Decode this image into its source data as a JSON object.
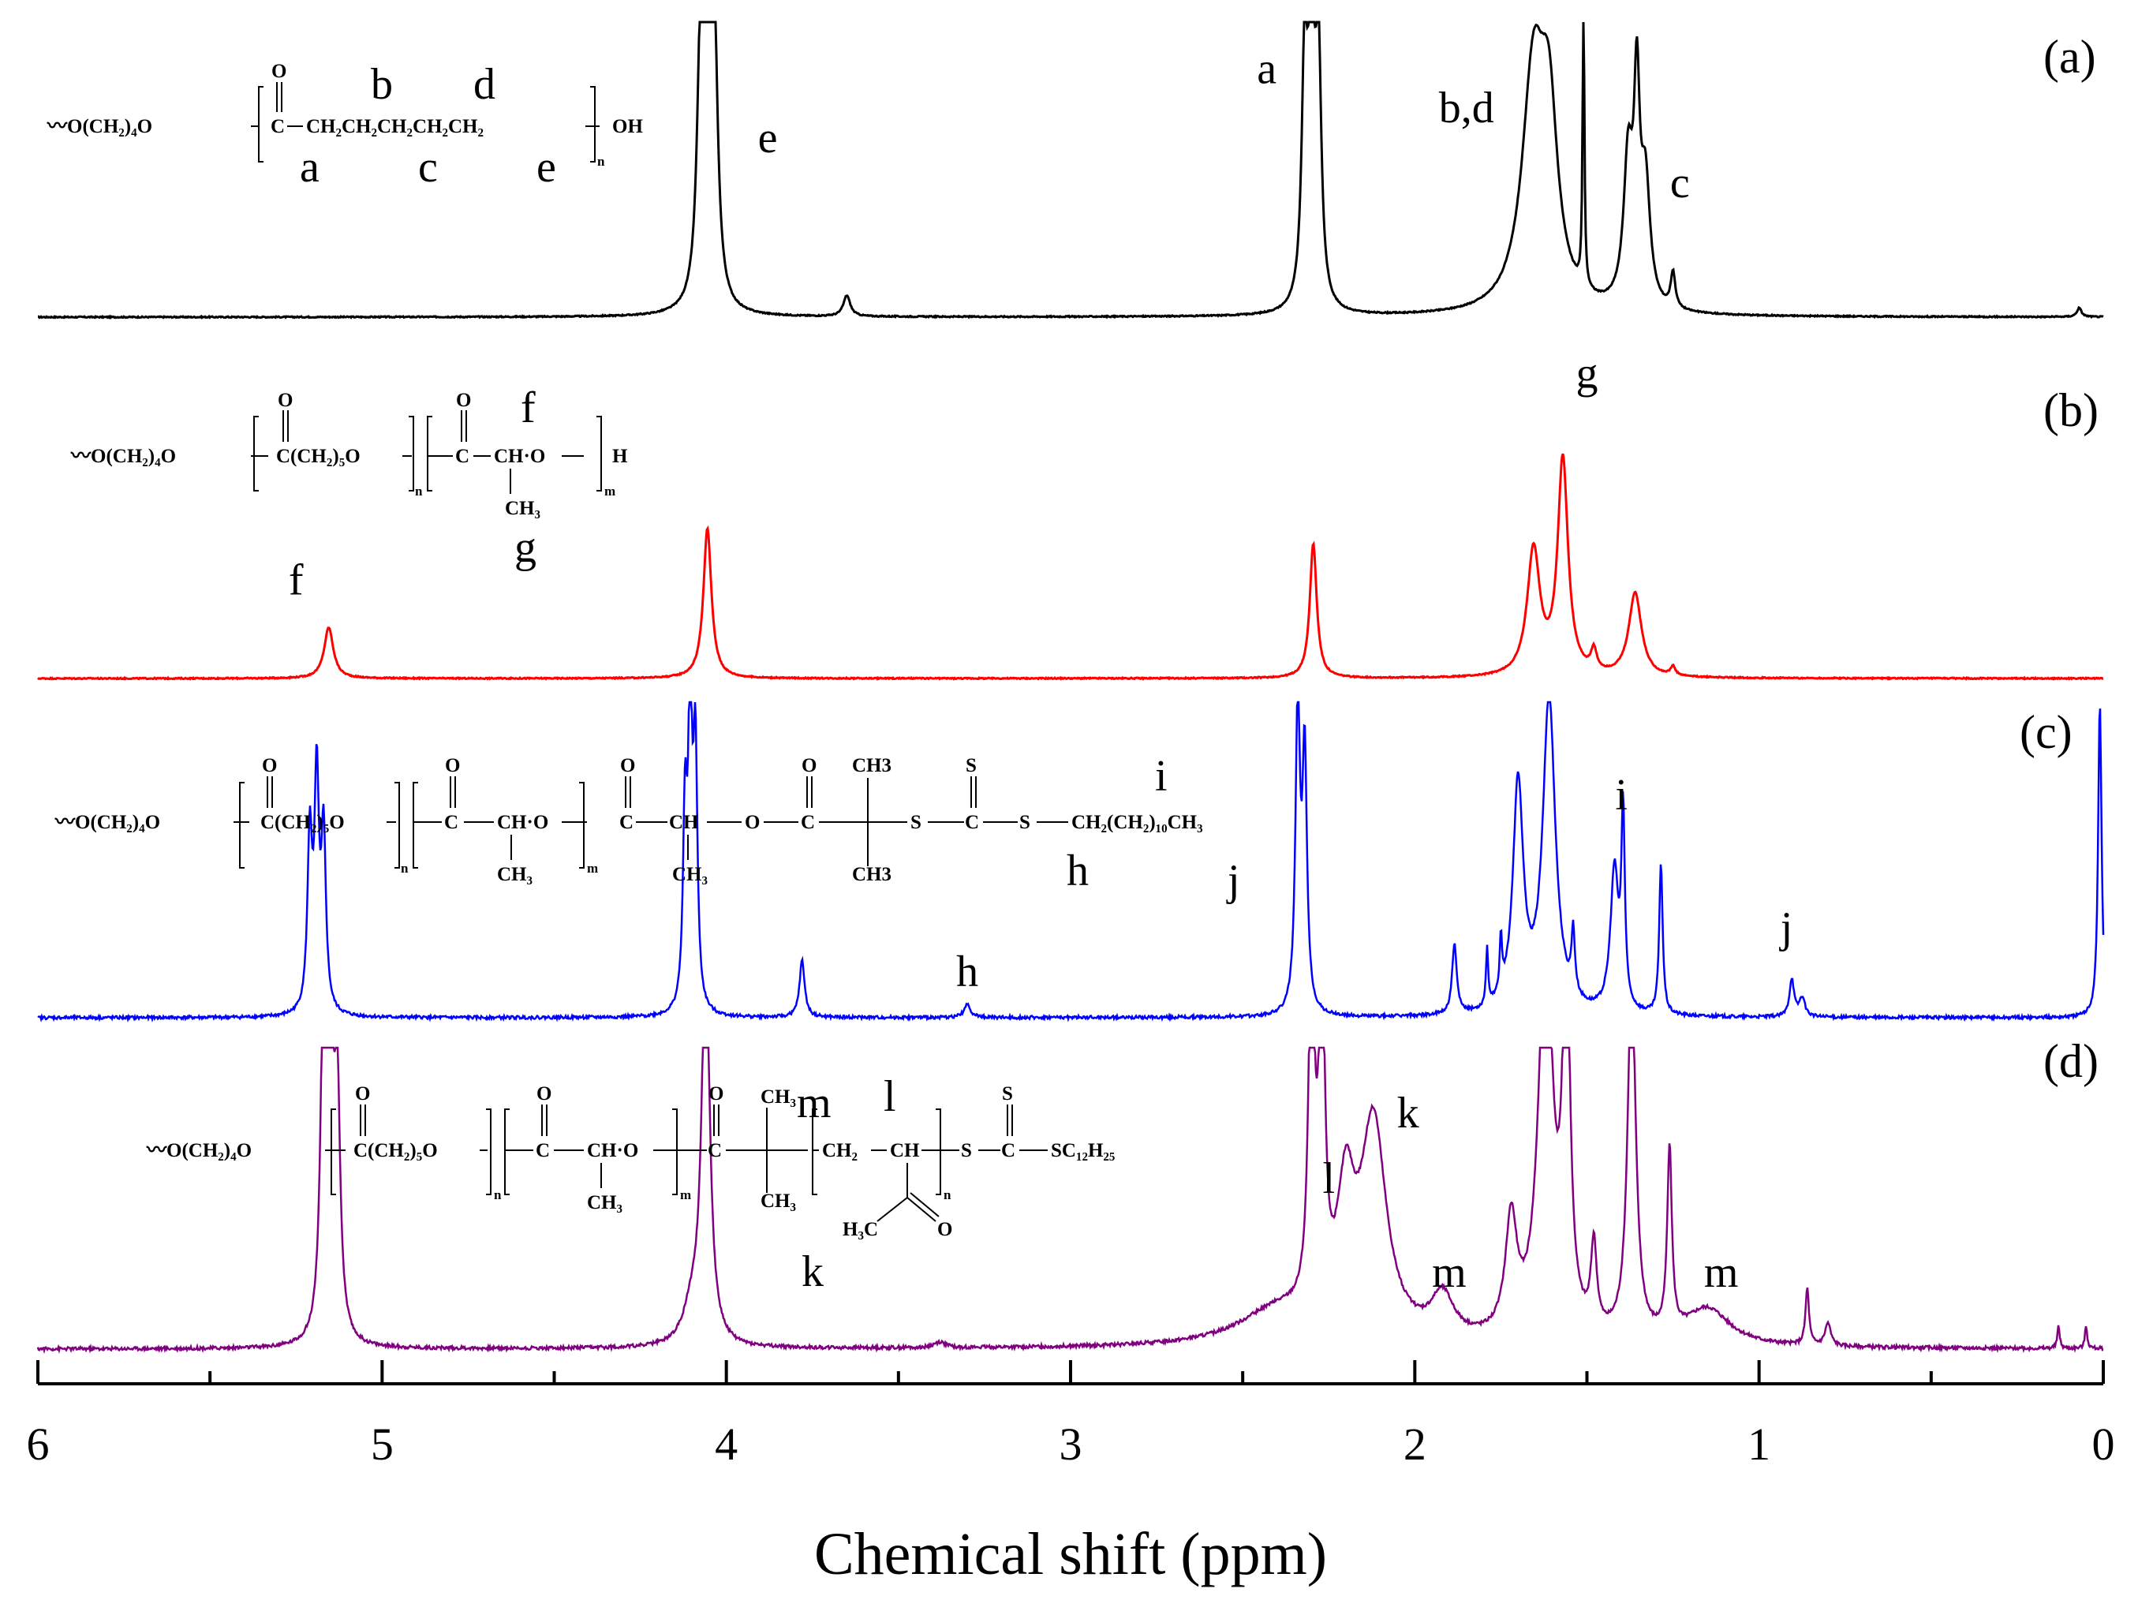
{
  "chart_data": {
    "type": "line",
    "title": "",
    "xlabel": "Chemical shift (ppm)",
    "ylabel": "",
    "xlim": [
      6,
      0
    ],
    "x_ticks": [
      "6",
      "5",
      "4",
      "3",
      "2",
      "1",
      "0"
    ],
    "series": [
      {
        "name": "(a)",
        "color": "#000000",
        "baseline_noise": 0.004,
        "peaks": [
          {
            "ppm": 4.055,
            "h": 0.97,
            "w": 0.012
          },
          {
            "ppm": 4.035,
            "h": 0.82,
            "w": 0.012
          },
          {
            "ppm": 4.075,
            "h": 0.78,
            "w": 0.012
          },
          {
            "ppm": 3.65,
            "h": 0.07,
            "w": 0.012
          },
          {
            "ppm": 2.3,
            "h": 0.98,
            "w": 0.01
          },
          {
            "ppm": 2.28,
            "h": 0.8,
            "w": 0.01
          },
          {
            "ppm": 2.32,
            "h": 0.8,
            "w": 0.01
          },
          {
            "ppm": 1.655,
            "h": 0.78,
            "w": 0.04
          },
          {
            "ppm": 1.61,
            "h": 0.55,
            "w": 0.03
          },
          {
            "ppm": 1.51,
            "h": 1.0,
            "w": 0.003
          },
          {
            "ppm": 1.38,
            "h": 0.48,
            "w": 0.016
          },
          {
            "ppm": 1.355,
            "h": 0.66,
            "w": 0.01
          },
          {
            "ppm": 1.33,
            "h": 0.4,
            "w": 0.016
          },
          {
            "ppm": 1.25,
            "h": 0.12,
            "w": 0.008
          },
          {
            "ppm": 0.07,
            "h": 0.03,
            "w": 0.008
          }
        ],
        "peak_labels": [
          {
            "text": "e",
            "ppm": 3.88,
            "frac": 0.55
          },
          {
            "text": "a",
            "ppm": 2.43,
            "frac": 0.78
          },
          {
            "text": "b,d",
            "ppm": 1.85,
            "frac": 0.65
          },
          {
            "text": "c",
            "ppm": 1.23,
            "frac": 0.4
          }
        ],
        "panel_label": "(a)",
        "structure": {
          "main": "〰O(CH₂)₄O",
          "carbonyl_o": "O",
          "carbonyl_c": "C",
          "chain": "CH₂CH₂CH₂CH₂CH₂",
          "end": "OH",
          "sub_n": "n",
          "labels": [
            "b",
            "d",
            "a",
            "c",
            "e"
          ]
        }
      },
      {
        "name": "(b)",
        "color": "#ff0000",
        "baseline_noise": 0.004,
        "peaks": [
          {
            "ppm": 5.155,
            "h": 0.17,
            "w": 0.016
          },
          {
            "ppm": 4.055,
            "h": 0.5,
            "w": 0.014
          },
          {
            "ppm": 2.295,
            "h": 0.45,
            "w": 0.012
          },
          {
            "ppm": 1.655,
            "h": 0.42,
            "w": 0.022
          },
          {
            "ppm": 1.57,
            "h": 0.72,
            "w": 0.018
          },
          {
            "ppm": 1.48,
            "h": 0.07,
            "w": 0.01
          },
          {
            "ppm": 1.36,
            "h": 0.28,
            "w": 0.022
          },
          {
            "ppm": 1.25,
            "h": 0.03,
            "w": 0.008
          }
        ],
        "peak_labels": [
          {
            "text": "f",
            "ppm": 5.25,
            "frac": 0.28
          },
          {
            "text": "g",
            "ppm": 1.5,
            "frac": 0.97
          }
        ],
        "panel_label": "(b)",
        "structure": {
          "main": "〰O(CH₂)₄O",
          "carbonyl_o": "O",
          "seg1": "C(CH₂)₅O",
          "seg2_c": "C",
          "seg2": "CH·O",
          "end": "H",
          "branch": "CH₃",
          "sub_n": "n",
          "sub_m": "m",
          "labels": [
            "f",
            "g"
          ]
        }
      },
      {
        "name": "(c)",
        "color": "#0000ff",
        "baseline_noise": 0.01,
        "peaks": [
          {
            "ppm": 5.21,
            "h": 0.55,
            "w": 0.008
          },
          {
            "ppm": 5.19,
            "h": 0.72,
            "w": 0.008
          },
          {
            "ppm": 5.17,
            "h": 0.55,
            "w": 0.008
          },
          {
            "ppm": 4.105,
            "h": 0.95,
            "w": 0.007
          },
          {
            "ppm": 4.09,
            "h": 0.8,
            "w": 0.007
          },
          {
            "ppm": 4.12,
            "h": 0.6,
            "w": 0.007
          },
          {
            "ppm": 3.78,
            "h": 0.18,
            "w": 0.009
          },
          {
            "ppm": 3.3,
            "h": 0.04,
            "w": 0.012
          },
          {
            "ppm": 2.34,
            "h": 0.96,
            "w": 0.008
          },
          {
            "ppm": 2.32,
            "h": 0.8,
            "w": 0.008
          },
          {
            "ppm": 1.885,
            "h": 0.22,
            "w": 0.008
          },
          {
            "ppm": 1.79,
            "h": 0.18,
            "w": 0.004
          },
          {
            "ppm": 1.75,
            "h": 0.18,
            "w": 0.004
          },
          {
            "ppm": 1.7,
            "h": 0.72,
            "w": 0.018
          },
          {
            "ppm": 1.61,
            "h": 1.0,
            "w": 0.022
          },
          {
            "ppm": 1.54,
            "h": 0.2,
            "w": 0.006
          },
          {
            "ppm": 1.42,
            "h": 0.45,
            "w": 0.014
          },
          {
            "ppm": 1.395,
            "h": 0.6,
            "w": 0.006
          },
          {
            "ppm": 1.285,
            "h": 0.48,
            "w": 0.006
          },
          {
            "ppm": 0.905,
            "h": 0.12,
            "w": 0.008
          },
          {
            "ppm": 0.875,
            "h": 0.06,
            "w": 0.01
          },
          {
            "ppm": 0.01,
            "h": 1.0,
            "w": 0.006
          }
        ],
        "peak_labels": [
          {
            "text": "h",
            "ppm": 3.3,
            "frac": 0.1
          },
          {
            "text": "i",
            "ppm": 1.4,
            "frac": 0.66
          },
          {
            "text": "j",
            "ppm": 0.92,
            "frac": 0.24
          }
        ],
        "panel_label": "(c)",
        "structure": {
          "main": "〰O(CH₂)₄O",
          "carbonyl_o": "O",
          "seg1": "C(CH₂)₅O",
          "seg2_c": "C",
          "seg2": "CH·O",
          "seg3_c": "C",
          "seg3": "CH",
          "seg4": "O",
          "seg5_c": "C",
          "me_top": "CH3",
          "me_bottom": "CH3",
          "s1": "S",
          "thio_s": "S",
          "thio_c": "C",
          "s2": "S",
          "tail": "CH₂(CH₂)₁₀CH₃",
          "branch": "CH₃",
          "sub_n": "n",
          "sub_m": "m",
          "labels": [
            "i",
            "h",
            "j"
          ]
        }
      },
      {
        "name": "(d)",
        "color": "#800080",
        "baseline_noise": 0.012,
        "peaks": [
          {
            "ppm": 5.17,
            "h": 1.2,
            "w": 0.01
          },
          {
            "ppm": 5.15,
            "h": 1.1,
            "w": 0.01
          },
          {
            "ppm": 5.13,
            "h": 0.8,
            "w": 0.01
          },
          {
            "ppm": 4.06,
            "h": 1.4,
            "w": 0.014
          },
          {
            "ppm": 4.1,
            "h": 0.12,
            "w": 0.03
          },
          {
            "ppm": 3.38,
            "h": 0.02,
            "w": 0.02
          },
          {
            "ppm": 2.4,
            "h": 0.12,
            "w": 0.14
          },
          {
            "ppm": 2.3,
            "h": 1.3,
            "w": 0.01
          },
          {
            "ppm": 2.27,
            "h": 1.2,
            "w": 0.01
          },
          {
            "ppm": 2.2,
            "h": 0.45,
            "w": 0.03
          },
          {
            "ppm": 2.12,
            "h": 0.75,
            "w": 0.045
          },
          {
            "ppm": 1.92,
            "h": 0.15,
            "w": 0.04
          },
          {
            "ppm": 1.72,
            "h": 0.4,
            "w": 0.02
          },
          {
            "ppm": 1.62,
            "h": 1.4,
            "w": 0.025
          },
          {
            "ppm": 1.56,
            "h": 1.4,
            "w": 0.012
          },
          {
            "ppm": 1.48,
            "h": 0.3,
            "w": 0.01
          },
          {
            "ppm": 1.37,
            "h": 1.3,
            "w": 0.014
          },
          {
            "ppm": 1.26,
            "h": 0.65,
            "w": 0.008
          },
          {
            "ppm": 1.15,
            "h": 0.13,
            "w": 0.08
          },
          {
            "ppm": 0.86,
            "h": 0.2,
            "w": 0.006
          },
          {
            "ppm": 0.8,
            "h": 0.08,
            "w": 0.01
          },
          {
            "ppm": 0.13,
            "h": 0.08,
            "w": 0.004
          },
          {
            "ppm": 0.05,
            "h": 0.08,
            "w": 0.004
          }
        ],
        "peak_labels": [
          {
            "text": "k",
            "ppm": 2.02,
            "frac": 0.78
          },
          {
            "text": "l",
            "ppm": 2.25,
            "frac": 0.55
          },
          {
            "text": "m",
            "ppm": 1.9,
            "frac": 0.22
          },
          {
            "text": "m",
            "ppm": 1.11,
            "frac": 0.22
          }
        ],
        "panel_label": "(d)",
        "structure": {
          "main": "〰O(CH₂)₄O",
          "carbonyl_o": "O",
          "seg1": "C(CH₂)₅O",
          "seg2_c": "C",
          "seg2": "CH·O",
          "seg3_c": "C",
          "me_top": "CH₃",
          "me_bottom": "CH₃",
          "seg4": "CH₂",
          "seg5": "CH",
          "ketone_me": "H₃C",
          "ketone_o": "O",
          "s1": "S",
          "thio_s": "S",
          "thio_c": "C",
          "tail": "SC₁₂H₂₅",
          "branch": "CH₃",
          "sub_n": "n",
          "sub_m": "m",
          "labels": [
            "m",
            "l",
            "k"
          ]
        }
      }
    ]
  }
}
